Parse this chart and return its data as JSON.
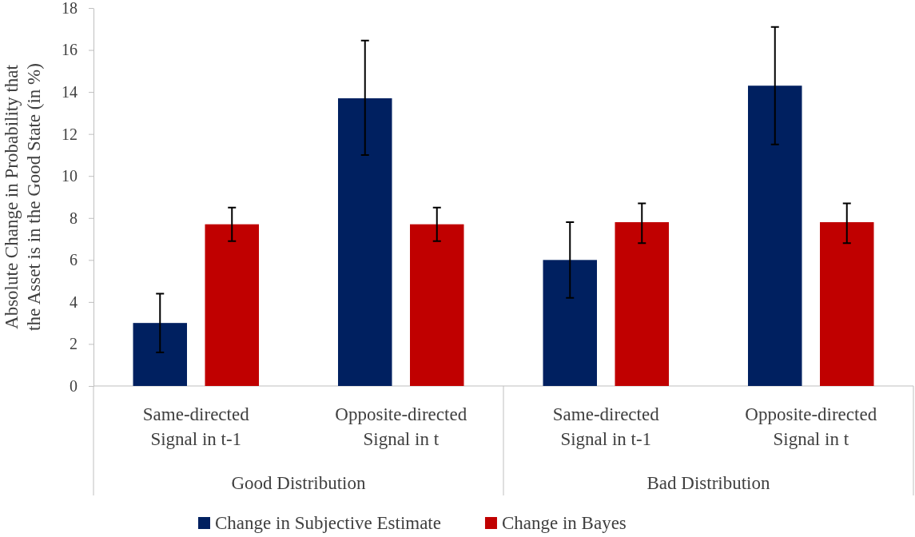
{
  "chart_data": {
    "type": "bar",
    "ylabel": "Absolute Change in Probability that the Asset is in the Good State (in %)",
    "categories": [
      "Same-directed Signal in t-1",
      "Opposite-directed Signal in t",
      "Same-directed Signal in t-1",
      "Opposite-directed Signal in t"
    ],
    "annotations": [
      "Good Distribution",
      "Bad Distribution"
    ],
    "series": [
      {
        "name": "Change in Subjective Estimate",
        "color": "#002060",
        "values": [
          3.0,
          13.7,
          6.0,
          14.3
        ],
        "errors": [
          [
            1.6,
            4.4
          ],
          [
            11.0,
            16.45
          ],
          [
            4.2,
            7.8
          ],
          [
            11.5,
            17.1
          ]
        ]
      },
      {
        "name": "Change in Bayes",
        "color": "#c00000",
        "values": [
          7.7,
          7.7,
          7.8,
          7.8
        ],
        "errors": [
          [
            6.9,
            8.5
          ],
          [
            6.9,
            8.5
          ],
          [
            6.8,
            8.7
          ],
          [
            6.8,
            8.7
          ]
        ]
      }
    ],
    "ylim": [
      0,
      18
    ],
    "yticks": [
      0,
      2,
      4,
      6,
      8,
      10,
      12,
      14,
      16,
      18
    ],
    "grid": false,
    "legend": "bottom"
  }
}
